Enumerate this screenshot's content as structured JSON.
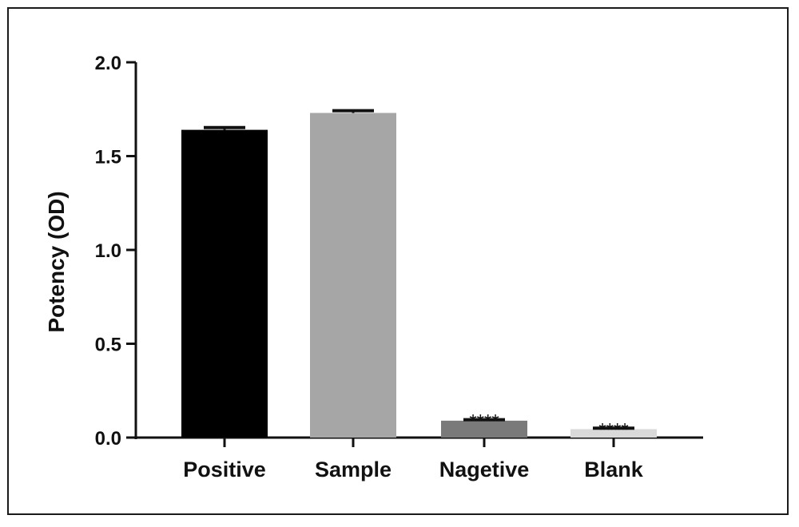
{
  "chart_data": {
    "type": "bar",
    "title": "",
    "xlabel": "",
    "ylabel": "Potency (OD)",
    "ylim": [
      0,
      2.0
    ],
    "yticks": [
      "0.0",
      "0.5",
      "1.0",
      "1.5",
      "2.0"
    ],
    "yticks_values": [
      0,
      0.5,
      1.0,
      1.5,
      2.0
    ],
    "categories": [
      "Positive",
      "Sample",
      "Nagetive",
      "Blank"
    ],
    "values": [
      1.64,
      1.73,
      0.09,
      0.045
    ],
    "errors": [
      0.012,
      0.012,
      0.005,
      0.005
    ],
    "colors": [
      "#000000",
      "#a6a6a6",
      "#7a7a7a",
      "#d9d9d9"
    ],
    "significance": [
      "",
      "",
      "****",
      "****"
    ],
    "grid": false,
    "legend": "none"
  }
}
